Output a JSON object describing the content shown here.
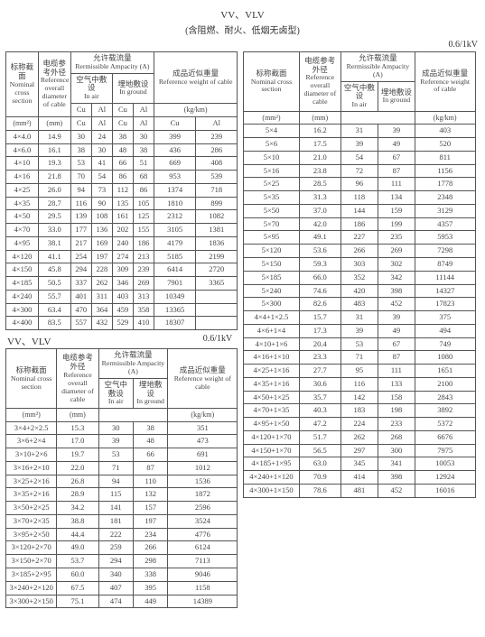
{
  "title": "VV、VLV",
  "subtitle": "(含阻燃、耐火、低烟无卤型)",
  "voltage": "0.6/1kV",
  "headers": {
    "cross_zh": "标称截面",
    "cross_en": "Nominal cross section",
    "diam_zh": "电缆参考外径",
    "diam_en": "Reference overall diameter of cable",
    "amp_zh": "允许载流量",
    "amp_en": "Rermissible Ampacity (A)",
    "weight_zh": "成品近似重量",
    "weight_en": "Reference weight of cable",
    "air_zh": "空气中敷设",
    "air_en": "In air",
    "ground_zh": "埋地敷设",
    "ground_en": "In ground",
    "mm2": "(mm²)",
    "mm": "(mm)",
    "kgkm": "(kg/km)",
    "cu": "Cu",
    "al": "Al"
  },
  "tableA": {
    "rows": [
      [
        "4×4.0",
        "14.9",
        "30",
        "24",
        "38",
        "30",
        "399",
        "239"
      ],
      [
        "4×6.0",
        "16.1",
        "38",
        "30",
        "48",
        "38",
        "436",
        "286"
      ],
      [
        "4×10",
        "19.3",
        "53",
        "41",
        "66",
        "51",
        "669",
        "408"
      ],
      [
        "4×16",
        "21.8",
        "70",
        "54",
        "86",
        "68",
        "953",
        "539"
      ],
      [
        "4×25",
        "26.0",
        "94",
        "73",
        "112",
        "86",
        "1374",
        "718"
      ],
      [
        "4×35",
        "28.7",
        "116",
        "90",
        "135",
        "105",
        "1810",
        "899"
      ],
      [
        "4×50",
        "29.5",
        "139",
        "108",
        "161",
        "125",
        "2312",
        "1082"
      ],
      [
        "4×70",
        "33.0",
        "177",
        "136",
        "202",
        "155",
        "3105",
        "1381"
      ],
      [
        "4×95",
        "38.1",
        "217",
        "169",
        "240",
        "186",
        "4179",
        "1836"
      ],
      [
        "4×120",
        "41.1",
        "254",
        "197",
        "274",
        "213",
        "5185",
        "2199"
      ],
      [
        "4×150",
        "45.8",
        "294",
        "228",
        "309",
        "239",
        "6414",
        "2720"
      ],
      [
        "4×185",
        "50.5",
        "337",
        "262",
        "346",
        "269",
        "7901",
        "3365"
      ],
      [
        "4×240",
        "55.7",
        "401",
        "311",
        "403",
        "313",
        "10349",
        ""
      ],
      [
        "4×300",
        "63.4",
        "470",
        "364",
        "459",
        "358",
        "13365",
        ""
      ],
      [
        "4×400",
        "83.5",
        "557",
        "432",
        "529",
        "410",
        "18307",
        ""
      ]
    ]
  },
  "tableB": {
    "title": "VV、VLV",
    "rows": [
      [
        "3×4+2×2.5",
        "15.3",
        "30",
        "38",
        "351"
      ],
      [
        "3×6+2×4",
        "17.0",
        "39",
        "48",
        "473"
      ],
      [
        "3×10+2×6",
        "19.7",
        "53",
        "66",
        "691"
      ],
      [
        "3×16+2×10",
        "22.0",
        "71",
        "87",
        "1012"
      ],
      [
        "3×25+2×16",
        "26.8",
        "94",
        "110",
        "1536"
      ],
      [
        "3×35+2×16",
        "28.9",
        "115",
        "132",
        "1872"
      ],
      [
        "3×50+2×25",
        "34.2",
        "141",
        "157",
        "2596"
      ],
      [
        "3×70+2×35",
        "38.8",
        "181",
        "197",
        "3524"
      ],
      [
        "3×95+2×50",
        "44.4",
        "222",
        "234",
        "4776"
      ],
      [
        "3×120+2×70",
        "49.0",
        "259",
        "266",
        "6124"
      ],
      [
        "3×150+2×70",
        "53.7",
        "294",
        "298",
        "7113"
      ],
      [
        "3×185+2×95",
        "60.0",
        "340",
        "338",
        "9046"
      ],
      [
        "3×240+2×120",
        "67.5",
        "407",
        "395",
        "1158"
      ],
      [
        "3×300+2×150",
        "75.1",
        "474",
        "449",
        "14389"
      ]
    ]
  },
  "tableC": {
    "rows": [
      [
        "5×4",
        "16.2",
        "31",
        "39",
        "403"
      ],
      [
        "5×6",
        "17.5",
        "39",
        "49",
        "520"
      ],
      [
        "5×10",
        "21.0",
        "54",
        "67",
        "811"
      ],
      [
        "5×16",
        "23.8",
        "72",
        "87",
        "1156"
      ],
      [
        "5×25",
        "28.5",
        "96",
        "111",
        "1778"
      ],
      [
        "5×35",
        "31.3",
        "118",
        "134",
        "2348"
      ],
      [
        "5×50",
        "37.0",
        "144",
        "159",
        "3129"
      ],
      [
        "5×70",
        "42.0",
        "186",
        "199",
        "4357"
      ],
      [
        "5×95",
        "49.1",
        "227",
        "235",
        "5953"
      ],
      [
        "5×120",
        "53.6",
        "266",
        "269",
        "7298"
      ],
      [
        "5×150",
        "59.3",
        "303",
        "302",
        "8749"
      ],
      [
        "5×185",
        "66.0",
        "352",
        "342",
        "11144"
      ],
      [
        "5×240",
        "74.6",
        "420",
        "398",
        "14327"
      ],
      [
        "5×300",
        "82.6",
        "483",
        "452",
        "17823"
      ],
      [
        "4×4+1×2.5",
        "15.7",
        "31",
        "39",
        "375"
      ],
      [
        "4×6+1×4",
        "17.3",
        "39",
        "49",
        "494"
      ],
      [
        "4×10+1×6",
        "20.4",
        "53",
        "67",
        "749"
      ],
      [
        "4×16+1×10",
        "23.3",
        "71",
        "87",
        "1080"
      ],
      [
        "4×25+1×16",
        "27.7",
        "95",
        "111",
        "1651"
      ],
      [
        "4×35+1×16",
        "30.6",
        "116",
        "133",
        "2100"
      ],
      [
        "4×50+1×25",
        "35.7",
        "142",
        "158",
        "2843"
      ],
      [
        "4×70+1×35",
        "40.3",
        "183",
        "198",
        "3892"
      ],
      [
        "4×95+1×50",
        "47.2",
        "224",
        "233",
        "5372"
      ],
      [
        "4×120+1×70",
        "51.7",
        "262",
        "268",
        "6676"
      ],
      [
        "4×150+1×70",
        "56.5",
        "297",
        "300",
        "7975"
      ],
      [
        "4×185+1×95",
        "63.0",
        "345",
        "341",
        "10053"
      ],
      [
        "4×240+1×120",
        "70.9",
        "414",
        "398",
        "12924"
      ],
      [
        "4×300+1×150",
        "78.6",
        "481",
        "452",
        "16016"
      ]
    ]
  }
}
